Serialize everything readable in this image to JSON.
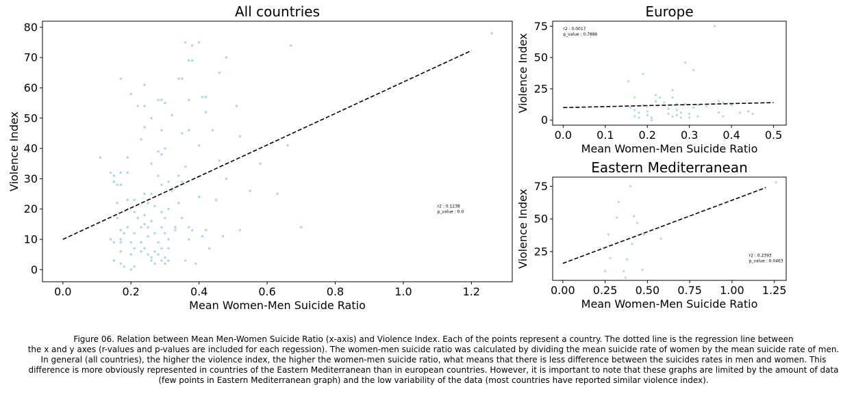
{
  "chart_data": [
    {
      "type": "scatter",
      "title": "All countries",
      "xlabel": "Mean Women-Men Suicide Ratio",
      "ylabel": "Violence Index",
      "xlim": [
        -0.06,
        1.32
      ],
      "ylim": [
        -4,
        82
      ],
      "xticks": [
        "0.0",
        "0.2",
        "0.4",
        "0.6",
        "0.8",
        "1.0",
        "1.2"
      ],
      "xtick_values": [
        0.0,
        0.2,
        0.4,
        0.6,
        0.8,
        1.0,
        1.2
      ],
      "yticks": [
        "0",
        "10",
        "20",
        "30",
        "40",
        "50",
        "60",
        "70",
        "80"
      ],
      "ytick_values": [
        0,
        10,
        20,
        30,
        40,
        50,
        60,
        70,
        80
      ],
      "point_color": "#add8e6",
      "line_color": "#000000",
      "regression_line": [
        [
          0.0,
          10.0
        ],
        [
          1.2,
          72.3
        ]
      ],
      "annotation": [
        "r2 : 0.1238",
        "p_value : 0.0"
      ],
      "annotation_pos": [
        1.1,
        20.5
      ],
      "points": [
        [
          0.11,
          37
        ],
        [
          0.14,
          32
        ],
        [
          0.14,
          10
        ],
        [
          0.15,
          9
        ],
        [
          0.15,
          3
        ],
        [
          0.15,
          31
        ],
        [
          0.15,
          29
        ],
        [
          0.16,
          28
        ],
        [
          0.16,
          22
        ],
        [
          0.16,
          17
        ],
        [
          0.17,
          63
        ],
        [
          0.17,
          32
        ],
        [
          0.17,
          28
        ],
        [
          0.17,
          13
        ],
        [
          0.17,
          10
        ],
        [
          0.17,
          9
        ],
        [
          0.17,
          6
        ],
        [
          0.17,
          2
        ],
        [
          0.18,
          1
        ],
        [
          0.18,
          12
        ],
        [
          0.19,
          23
        ],
        [
          0.19,
          20
        ],
        [
          0.19,
          37
        ],
        [
          0.19,
          32
        ],
        [
          0.19,
          14
        ],
        [
          0.2,
          58
        ],
        [
          0.2,
          58
        ],
        [
          0.2,
          9
        ],
        [
          0.2,
          5
        ],
        [
          0.2,
          0
        ],
        [
          0.21,
          23
        ],
        [
          0.21,
          19
        ],
        [
          0.21,
          12
        ],
        [
          0.21,
          7
        ],
        [
          0.21,
          1
        ],
        [
          0.22,
          54
        ],
        [
          0.22,
          17
        ],
        [
          0.23,
          43
        ],
        [
          0.23,
          14
        ],
        [
          0.23,
          9
        ],
        [
          0.23,
          6
        ],
        [
          0.24,
          61
        ],
        [
          0.24,
          54
        ],
        [
          0.24,
          47
        ],
        [
          0.24,
          25
        ],
        [
          0.24,
          18
        ],
        [
          0.24,
          15
        ],
        [
          0.24,
          7
        ],
        [
          0.25,
          22
        ],
        [
          0.25,
          14
        ],
        [
          0.25,
          11
        ],
        [
          0.25,
          5
        ],
        [
          0.26,
          50
        ],
        [
          0.26,
          35
        ],
        [
          0.26,
          25
        ],
        [
          0.26,
          16
        ],
        [
          0.26,
          4
        ],
        [
          0.26,
          3
        ],
        [
          0.27,
          21
        ],
        [
          0.27,
          12
        ],
        [
          0.27,
          6
        ],
        [
          0.27,
          2
        ],
        [
          0.28,
          56
        ],
        [
          0.28,
          39
        ],
        [
          0.28,
          31
        ],
        [
          0.28,
          9
        ],
        [
          0.28,
          5
        ],
        [
          0.29,
          56
        ],
        [
          0.29,
          46
        ],
        [
          0.29,
          38
        ],
        [
          0.29,
          28
        ],
        [
          0.29,
          19
        ],
        [
          0.29,
          14
        ],
        [
          0.29,
          7
        ],
        [
          0.29,
          3
        ],
        [
          0.3,
          55
        ],
        [
          0.3,
          40
        ],
        [
          0.3,
          17
        ],
        [
          0.3,
          12
        ],
        [
          0.3,
          4
        ],
        [
          0.3,
          2
        ],
        [
          0.31,
          29
        ],
        [
          0.31,
          20
        ],
        [
          0.31,
          10
        ],
        [
          0.31,
          7
        ],
        [
          0.31,
          3
        ],
        [
          0.32,
          51
        ],
        [
          0.32,
          26
        ],
        [
          0.33,
          14
        ],
        [
          0.33,
          13
        ],
        [
          0.34,
          63
        ],
        [
          0.34,
          31
        ],
        [
          0.34,
          22
        ],
        [
          0.35,
          63
        ],
        [
          0.35,
          45
        ],
        [
          0.35,
          29
        ],
        [
          0.35,
          17
        ],
        [
          0.36,
          75
        ],
        [
          0.36,
          34
        ],
        [
          0.36,
          3
        ],
        [
          0.37,
          69
        ],
        [
          0.37,
          56
        ],
        [
          0.37,
          46
        ],
        [
          0.37,
          14
        ],
        [
          0.37,
          10
        ],
        [
          0.38,
          74
        ],
        [
          0.38,
          69
        ],
        [
          0.38,
          13
        ],
        [
          0.39,
          2
        ],
        [
          0.4,
          75
        ],
        [
          0.4,
          41
        ],
        [
          0.4,
          24
        ],
        [
          0.41,
          57
        ],
        [
          0.41,
          11
        ],
        [
          0.42,
          57
        ],
        [
          0.42,
          52
        ],
        [
          0.42,
          13
        ],
        [
          0.43,
          7
        ],
        [
          0.44,
          46
        ],
        [
          0.45,
          23
        ],
        [
          0.46,
          65
        ],
        [
          0.46,
          36
        ],
        [
          0.47,
          11
        ],
        [
          0.48,
          70
        ],
        [
          0.48,
          30
        ],
        [
          0.51,
          54
        ],
        [
          0.52,
          44
        ],
        [
          0.52,
          13
        ],
        [
          0.55,
          26
        ],
        [
          0.58,
          35
        ],
        [
          0.63,
          25
        ],
        [
          0.66,
          41
        ],
        [
          0.67,
          74
        ],
        [
          0.7,
          14
        ],
        [
          1.26,
          78
        ]
      ]
    },
    {
      "type": "scatter",
      "title": "Europe",
      "xlabel": "Mean Women-Men Suicide Ratio",
      "ylabel": "Violence Index",
      "xlim": [
        -0.025,
        0.53
      ],
      "ylim": [
        -4,
        79
      ],
      "xticks": [
        "0.0",
        "0.1",
        "0.2",
        "0.3",
        "0.4",
        "0.5"
      ],
      "xtick_values": [
        0.0,
        0.1,
        0.2,
        0.3,
        0.4,
        0.5
      ],
      "yticks": [
        "0",
        "25",
        "50",
        "75"
      ],
      "ytick_values": [
        0,
        25,
        50,
        75
      ],
      "point_color": "#add8e6",
      "line_color": "#000000",
      "regression_line": [
        [
          0.0,
          10.0
        ],
        [
          0.5,
          14.0
        ]
      ],
      "annotation": [
        "r2 : 0.0017",
        "p_value : 0.7886"
      ],
      "annotation_pos": [
        0.0,
        72
      ],
      "points": [
        [
          0.155,
          31
        ],
        [
          0.16,
          10
        ],
        [
          0.17,
          18
        ],
        [
          0.17,
          8
        ],
        [
          0.17,
          3
        ],
        [
          0.18,
          6
        ],
        [
          0.18,
          2
        ],
        [
          0.19,
          37
        ],
        [
          0.19,
          12
        ],
        [
          0.2,
          7
        ],
        [
          0.2,
          4
        ],
        [
          0.21,
          2
        ],
        [
          0.21,
          0
        ],
        [
          0.22,
          20
        ],
        [
          0.22,
          15
        ],
        [
          0.23,
          18
        ],
        [
          0.24,
          14
        ],
        [
          0.25,
          9
        ],
        [
          0.25,
          5
        ],
        [
          0.26,
          24
        ],
        [
          0.26,
          18
        ],
        [
          0.26,
          3
        ],
        [
          0.27,
          13
        ],
        [
          0.27,
          8
        ],
        [
          0.27,
          4
        ],
        [
          0.28,
          6
        ],
        [
          0.28,
          2
        ],
        [
          0.29,
          46
        ],
        [
          0.29,
          13
        ],
        [
          0.3,
          5
        ],
        [
          0.3,
          2
        ],
        [
          0.31,
          40
        ],
        [
          0.31,
          10
        ],
        [
          0.32,
          3
        ],
        [
          0.32,
          12
        ],
        [
          0.34,
          11
        ],
        [
          0.36,
          75
        ],
        [
          0.37,
          15
        ],
        [
          0.37,
          6
        ],
        [
          0.38,
          3
        ],
        [
          0.38,
          14
        ],
        [
          0.4,
          12
        ],
        [
          0.42,
          6
        ],
        [
          0.44,
          7
        ],
        [
          0.45,
          5
        ]
      ]
    },
    {
      "type": "scatter",
      "title": "Eastern Mediterranean",
      "xlabel": "Mean Women-Men Suicide Ratio",
      "ylabel": "Violence Index",
      "xlim": [
        -0.06,
        1.32
      ],
      "ylim": [
        3,
        82
      ],
      "xticks": [
        "0.00",
        "0.25",
        "0.50",
        "0.75",
        "1.00",
        "1.25"
      ],
      "xtick_values": [
        0.0,
        0.25,
        0.5,
        0.75,
        1.0,
        1.25
      ],
      "yticks": [
        "25",
        "50",
        "75"
      ],
      "ytick_values": [
        25,
        50,
        75
      ],
      "point_color": "#add8e6",
      "line_color": "#000000",
      "regression_line": [
        [
          0.0,
          16.0
        ],
        [
          1.2,
          74.0
        ]
      ],
      "annotation": [
        "r2 : 0.2393",
        "p_value : 0.0463"
      ],
      "annotation_pos": [
        1.1,
        21
      ],
      "points": [
        [
          0.25,
          10
        ],
        [
          0.27,
          38
        ],
        [
          0.28,
          20
        ],
        [
          0.32,
          51
        ],
        [
          0.33,
          63
        ],
        [
          0.36,
          10
        ],
        [
          0.37,
          5
        ],
        [
          0.38,
          19
        ],
        [
          0.4,
          75
        ],
        [
          0.41,
          31
        ],
        [
          0.42,
          52
        ],
        [
          0.44,
          47
        ],
        [
          0.47,
          11
        ],
        [
          0.48,
          38
        ],
        [
          0.58,
          35
        ],
        [
          1.26,
          78
        ]
      ]
    }
  ],
  "caption": [
    "Figure 06. Relation between Mean Men-Women Suicide Ratio (x-axis) and Violence Index. Each of the points represent a country. The dotted line is the regression line between",
    "the x and y axes (r-values and p-values are included for each regession). The women-men suicide ratio was calculated by dividing the mean suicide rate of women by the mean suicide rate of men.",
    "In general (all countries), the higher the violence index, the higher the women-men suicide ratio, what means that there is less difference between the suicides rates in men and women. This",
    "difference is more obviously represented in countries of the Eastern Mediterranean than in european countries. However, it is important to note that these graphs are limited by the amount of data",
    "(few points in Eastern Mediterranean graph) and the low variability of the data (most countries have reported similar violence index)."
  ]
}
